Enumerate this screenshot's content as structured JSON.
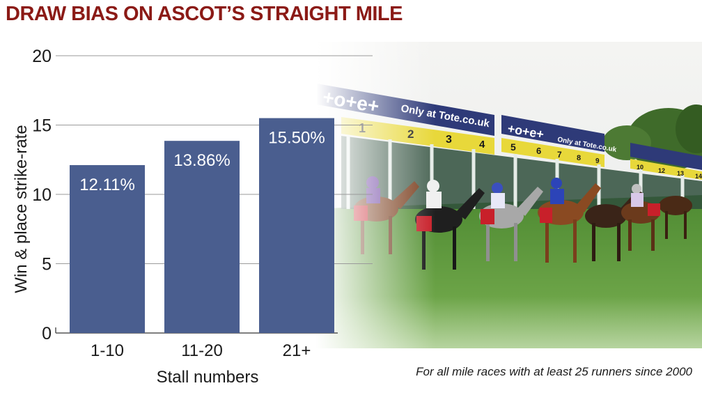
{
  "chart_data": {
    "type": "bar",
    "title": "DRAW BIAS ON ASCOT’S STRAIGHT MILE",
    "xlabel": "Stall numbers",
    "ylabel": "Win & place strike-rate",
    "categories": [
      "1-10",
      "11-20",
      "21+"
    ],
    "values": [
      12.11,
      13.86,
      15.5
    ],
    "data_labels": [
      "12.11%",
      "13.86%",
      "15.50%"
    ],
    "ylim": [
      0,
      20
    ],
    "yticks": [
      "0",
      "5",
      "10",
      "15",
      "20"
    ],
    "grid": true,
    "legend": "none",
    "bar_color": "#4a5e8f",
    "label_color": "#ffffff",
    "annotation": "For all mile races with at least 25 runners since 2000"
  },
  "photo": {
    "banner_text": "+o+e+",
    "banner_tagline": "Only at Tote.co.uk",
    "stalls": [
      "1",
      "2",
      "3",
      "4",
      "5",
      "6",
      "7",
      "8",
      "9",
      "10",
      "12",
      "13",
      "14"
    ]
  },
  "colors": {
    "title": "#8b1a16",
    "grid": "#9a9a9a",
    "banner": "#2e3a78",
    "grass": "#5f9a3c",
    "sky": "#f2f2f0"
  }
}
